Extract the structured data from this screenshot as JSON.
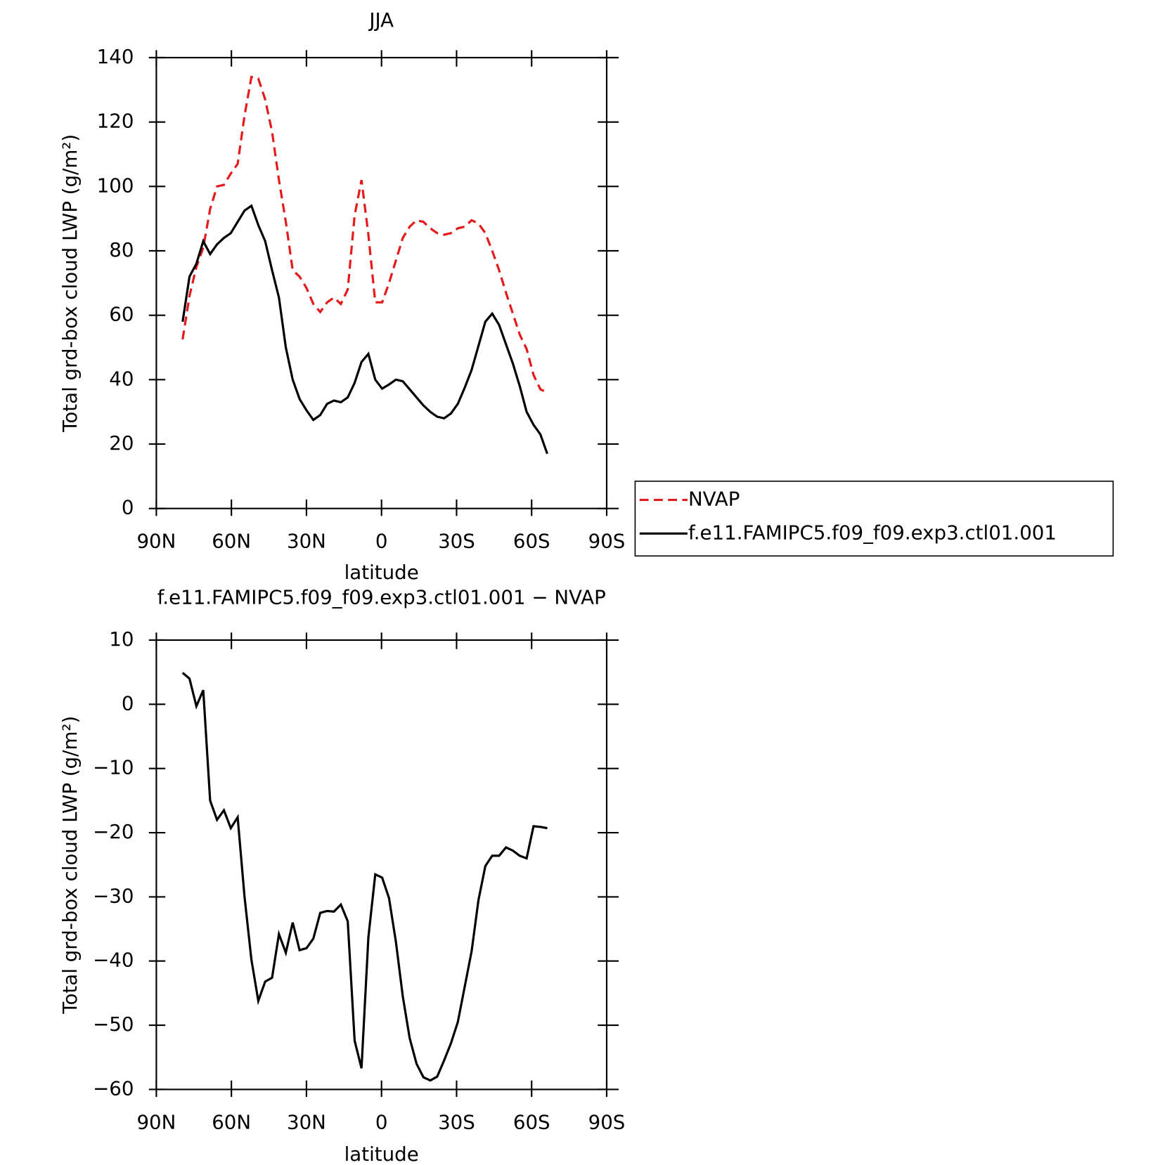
{
  "chart_data": [
    {
      "type": "line",
      "title": "JJA",
      "xlabel": "latitude",
      "ylabel": "Total grd-box cloud LWP (g/m²)",
      "xlim": [
        90,
        -90
      ],
      "ylim": [
        0,
        140
      ],
      "xticks": [
        {
          "value": 90,
          "label": "90N"
        },
        {
          "value": 60,
          "label": "60N"
        },
        {
          "value": 30,
          "label": "30N"
        },
        0,
        {
          "value": -30,
          "label": "30S"
        },
        {
          "value": -60,
          "label": "60S"
        },
        {
          "value": -90,
          "label": "90S"
        }
      ],
      "yticks": [
        0,
        20,
        40,
        60,
        80,
        100,
        120,
        140
      ],
      "legend": "right",
      "x": [
        79.5,
        76.75,
        74,
        71.25,
        68.5,
        65.75,
        63,
        60.25,
        57.5,
        54.75,
        52,
        49.25,
        46.5,
        43.75,
        41,
        38.25,
        35.5,
        32.75,
        30,
        27.25,
        24.5,
        21.75,
        19,
        16.25,
        13.5,
        10.75,
        8,
        5.25,
        2.5,
        -0.25,
        -3,
        -5.75,
        -8.5,
        -11.25,
        -14,
        -16.75,
        -19.5,
        -22.25,
        -25,
        -27.75,
        -30.5,
        -33.25,
        -36,
        -38.75,
        -41.5,
        -44.25,
        -47,
        -49.75,
        -52.5,
        -55.25,
        -58,
        -60.75,
        -63.5,
        -66.25
      ],
      "series": [
        {
          "name": "NVAP",
          "color": "#e41a1c",
          "style": "dashed",
          "values": [
            52.5,
            66,
            75,
            81,
            93,
            100,
            100.5,
            104,
            107,
            122,
            134,
            133.5,
            127,
            117,
            102,
            89,
            74,
            72,
            68.5,
            63.5,
            61,
            64,
            65.5,
            63.5,
            68,
            91,
            102,
            85,
            64,
            64,
            70,
            77,
            84,
            87.5,
            89.5,
            89,
            87,
            85.5,
            85,
            85.5,
            87,
            87.5,
            89.5,
            88.5,
            85.5,
            80,
            74,
            67,
            60.5,
            54,
            49.5,
            41.5,
            37,
            36
          ]
        },
        {
          "name": "f.e11.FAMIPC5.f09_f09.exp3.ctl01.001",
          "color": "#000000",
          "style": "solid",
          "values": [
            58,
            72,
            76,
            83,
            79,
            82,
            84,
            85.5,
            89,
            92.5,
            94,
            88,
            83,
            74,
            65.5,
            50,
            40,
            34,
            30.5,
            27.5,
            29,
            32.5,
            33.5,
            33,
            34.5,
            39,
            45.5,
            48,
            40,
            37.2,
            38.5,
            40,
            39.5,
            37,
            34.5,
            32,
            30,
            28.5,
            28,
            29.5,
            32.5,
            37.5,
            43,
            50.5,
            58,
            60.5,
            57,
            51,
            45,
            38,
            30,
            26,
            23,
            17
          ]
        }
      ]
    },
    {
      "type": "line",
      "title": "f.e11.FAMIPC5.f09_f09.exp3.ctl01.001 − NVAP",
      "xlabel": "latitude",
      "ylabel": "Total grd-box cloud LWP (g/m²)",
      "xlim": [
        90,
        -90
      ],
      "ylim": [
        -60,
        10
      ],
      "xticks": [
        {
          "value": 90,
          "label": "90N"
        },
        {
          "value": 60,
          "label": "60N"
        },
        {
          "value": 30,
          "label": "30N"
        },
        0,
        {
          "value": -30,
          "label": "30S"
        },
        {
          "value": -60,
          "label": "60S"
        },
        {
          "value": -90,
          "label": "90S"
        }
      ],
      "yticks": [
        {
          "value": -60,
          "label": "−60"
        },
        {
          "value": -50,
          "label": "−50"
        },
        {
          "value": -40,
          "label": "−40"
        },
        {
          "value": -30,
          "label": "−30"
        },
        {
          "value": -20,
          "label": "−20"
        },
        {
          "value": -10,
          "label": "−10"
        },
        0,
        10
      ],
      "x": [
        79.5,
        76.75,
        74,
        71.25,
        68.5,
        65.75,
        63,
        60.25,
        57.5,
        54.75,
        52,
        49.25,
        46.5,
        43.75,
        41,
        38.25,
        35.5,
        32.75,
        30,
        27.25,
        24.5,
        21.75,
        19,
        16.25,
        13.5,
        10.75,
        8,
        5.25,
        2.5,
        -0.25,
        -3,
        -5.75,
        -8.5,
        -11.25,
        -14,
        -16.75,
        -19.5,
        -22.25,
        -25,
        -27.75,
        -30.5,
        -33.25,
        -36,
        -38.75,
        -41.5,
        -44.25,
        -47,
        -49.75,
        -52.5,
        -55.25,
        -58,
        -60.75,
        -63.5,
        -66.25
      ],
      "series": [
        {
          "color": "#000000",
          "style": "solid",
          "values": [
            4.9,
            4,
            -0.3,
            2.2,
            -15,
            -18,
            -16.5,
            -19.3,
            -17.6,
            -30,
            -39.8,
            -46.2,
            -43.2,
            -42.6,
            -35.8,
            -38.7,
            -34,
            -38.3,
            -38,
            -36.5,
            -32.5,
            -32.2,
            -32.3,
            -31.2,
            -33.8,
            -52.4,
            -56.7,
            -36.3,
            -26.5,
            -27,
            -30.2,
            -37,
            -45.5,
            -52,
            -56,
            -58.1,
            -58.6,
            -58,
            -55.5,
            -52.8,
            -49.5,
            -44,
            -38.5,
            -30.5,
            -25.2,
            -23.6,
            -23.6,
            -22.3,
            -22.8,
            -23.6,
            -24,
            -19,
            -19.1,
            -19.3
          ]
        }
      ]
    }
  ]
}
